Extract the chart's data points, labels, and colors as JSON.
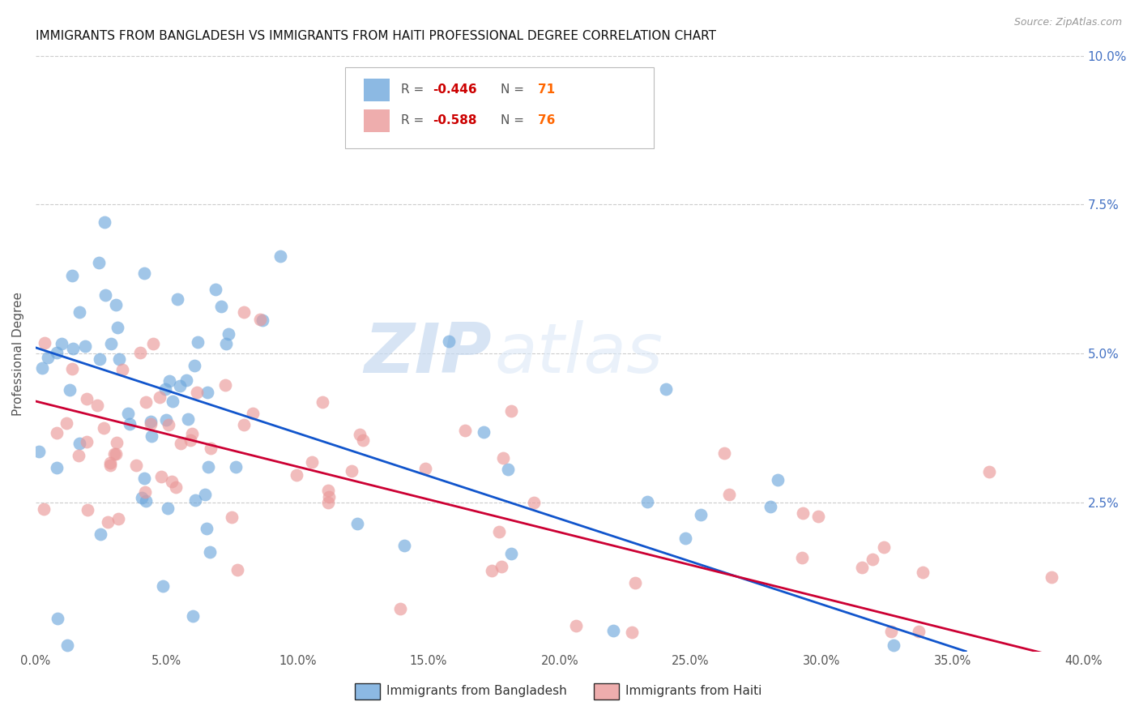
{
  "title": "IMMIGRANTS FROM BANGLADESH VS IMMIGRANTS FROM HAITI PROFESSIONAL DEGREE CORRELATION CHART",
  "source": "Source: ZipAtlas.com",
  "ylabel": "Professional Degree",
  "xlim": [
    0.0,
    0.4
  ],
  "ylim": [
    0.0,
    0.1
  ],
  "xticks": [
    0.0,
    0.05,
    0.1,
    0.15,
    0.2,
    0.25,
    0.3,
    0.35,
    0.4
  ],
  "xtick_labels": [
    "0.0%",
    "5.0%",
    "10.0%",
    "15.0%",
    "20.0%",
    "25.0%",
    "30.0%",
    "35.0%",
    "40.0%"
  ],
  "yticks_right": [
    0.025,
    0.05,
    0.075,
    0.1
  ],
  "ytick_labels_right": [
    "2.5%",
    "5.0%",
    "7.5%",
    "10.0%"
  ],
  "series": [
    {
      "name": "Immigrants from Bangladesh",
      "color": "#6fa8dc",
      "R": -0.446,
      "N": 71
    },
    {
      "name": "Immigrants from Haiti",
      "color": "#ea9999",
      "R": -0.588,
      "N": 76
    }
  ],
  "regression": [
    {
      "color": "#1155cc",
      "x_start": 0.0,
      "x_end": 0.355,
      "y_start": 0.051,
      "y_end": 0.0
    },
    {
      "color": "#cc0033",
      "x_start": 0.0,
      "x_end": 0.4,
      "y_start": 0.042,
      "y_end": -0.002
    }
  ],
  "watermark_zip": "ZIP",
  "watermark_atlas": "atlas",
  "background_color": "#ffffff",
  "grid_color": "#cccccc",
  "title_fontsize": 11,
  "tick_label_color_right": "#4472c4",
  "tick_label_color_x": "#555555",
  "legend_label1": "R = ",
  "legend_val1": "-0.446",
  "legend_n1": "N = ",
  "legend_nval1": "71",
  "legend_label2": "R = ",
  "legend_val2": "-0.588",
  "legend_n2": "N = ",
  "legend_nval2": "76",
  "legend_R_color": "#cc0000",
  "legend_N_color": "#ff6600",
  "legend_text_color": "#555555"
}
